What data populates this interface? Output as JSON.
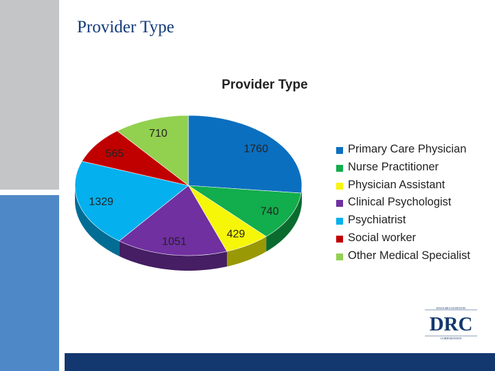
{
  "slide": {
    "title": "Provider Type"
  },
  "colors": {
    "sidebar_top": "#c4c5c7",
    "sidebar_bottom": "#4f88c6",
    "bottom_bar": "#13386f",
    "title_text": "#123a78"
  },
  "logo": {
    "name": "drc-logo",
    "top_text": "DATA RECOGNITION",
    "main_text": "DRC",
    "bottom_text": "CORPORATION"
  },
  "chart_data": {
    "type": "pie",
    "title": "Provider Type",
    "categories": [
      "Primary Care Physician",
      "Nurse Practitioner",
      "Physician Assistant",
      "Clinical Psychologist",
      "Psychiatrist",
      "Social worker",
      "Other Medical Specialist"
    ],
    "values": [
      1760,
      740,
      429,
      1051,
      1329,
      565,
      710
    ],
    "colors": [
      "#0b6fc0",
      "#12ad4c",
      "#f6f609",
      "#7030a0",
      "#04b0ee",
      "#c00000",
      "#92d050"
    ],
    "legend_position": "right",
    "style": "3d"
  }
}
